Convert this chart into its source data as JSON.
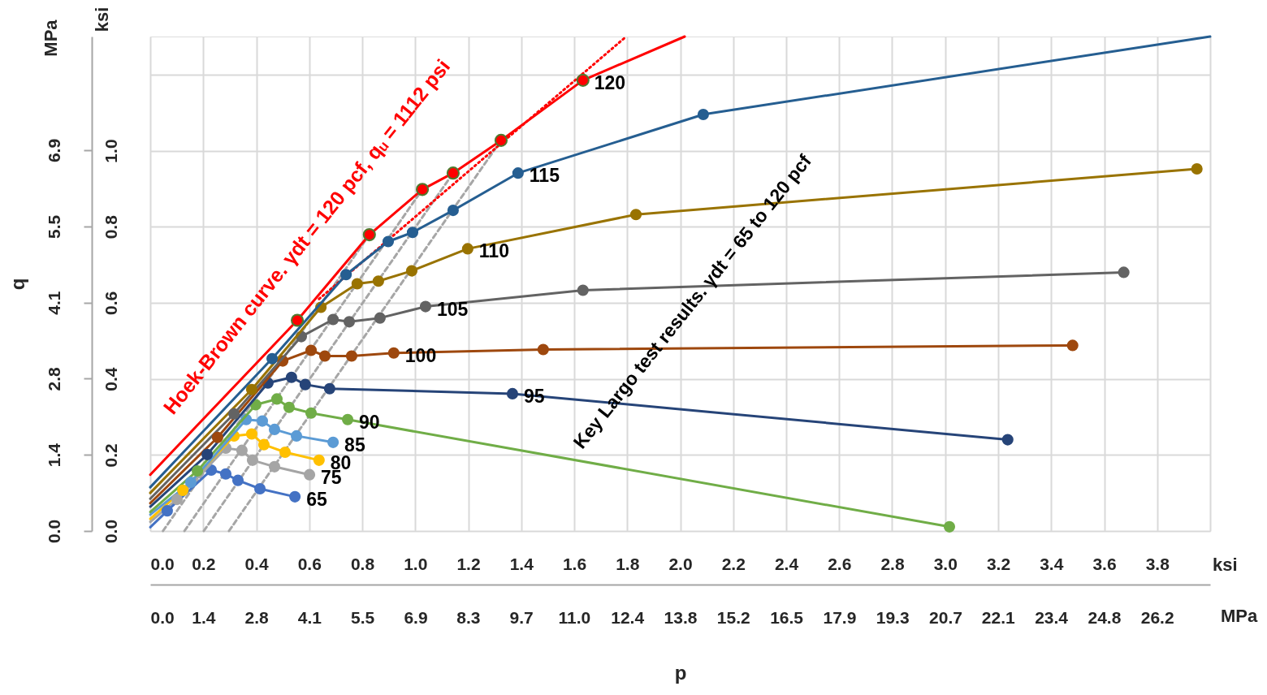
{
  "chart_data": {
    "type": "line",
    "xlabel": "p",
    "y2label": "q",
    "marker": "circle",
    "grid": true,
    "xlim": [
      0,
      4.0
    ],
    "ylim": [
      0,
      1.3
    ],
    "xticks": [
      {
        "value": 0,
        "label": "0.0"
      },
      {
        "value": 0.2,
        "label": "0.2"
      },
      {
        "value": 0.4,
        "label": "0.4"
      },
      {
        "value": 0.6,
        "label": "0.6"
      },
      {
        "value": 0.8,
        "label": "0.8"
      },
      {
        "value": 1.0,
        "label": "1.0"
      },
      {
        "value": 1.2,
        "label": "1.2"
      },
      {
        "value": 1.4,
        "label": "1.4"
      },
      {
        "value": 1.6,
        "label": "1.6"
      },
      {
        "value": 1.8,
        "label": "1.8"
      },
      {
        "value": 2.0,
        "label": "2.0"
      },
      {
        "value": 2.2,
        "label": "2.2"
      },
      {
        "value": 2.4,
        "label": "2.4"
      },
      {
        "value": 2.6,
        "label": "2.6"
      },
      {
        "value": 2.8,
        "label": "2.8"
      },
      {
        "value": 3.0,
        "label": "3.0"
      },
      {
        "value": 3.2,
        "label": "3.2"
      },
      {
        "value": 3.4,
        "label": "3.4"
      },
      {
        "value": 3.6,
        "label": "3.6"
      },
      {
        "value": 3.8,
        "label": "3.8"
      },
      {
        "value": 4.0,
        "label": null
      }
    ],
    "yticks": [
      {
        "value": 0,
        "label": "0.0"
      },
      {
        "value": 0.2,
        "label": "0.2"
      },
      {
        "value": 0.4,
        "label": "0.4"
      },
      {
        "value": 0.6,
        "label": "0.6"
      },
      {
        "value": 0.8,
        "label": "0.8"
      },
      {
        "value": 1.0,
        "label": "1.0"
      },
      {
        "value": 1.2,
        "label": null
      }
    ],
    "x2lim": [
      0,
      27.58
    ],
    "x2ticks": [
      {
        "value": 0,
        "label": "0.0"
      },
      {
        "value": 1.38,
        "label": "1.4"
      },
      {
        "value": 2.76,
        "label": "2.8"
      },
      {
        "value": 4.14,
        "label": "4.1"
      },
      {
        "value": 5.52,
        "label": "5.5"
      },
      {
        "value": 6.9,
        "label": "6.9"
      },
      {
        "value": 8.27,
        "label": "8.3"
      },
      {
        "value": 9.65,
        "label": "9.7"
      },
      {
        "value": 11.03,
        "label": "11.0"
      },
      {
        "value": 12.41,
        "label": "12.4"
      },
      {
        "value": 13.79,
        "label": "13.8"
      },
      {
        "value": 15.17,
        "label": "15.2"
      },
      {
        "value": 16.55,
        "label": "16.5"
      },
      {
        "value": 17.93,
        "label": "17.9"
      },
      {
        "value": 19.31,
        "label": "19.3"
      },
      {
        "value": 20.69,
        "label": "20.7"
      },
      {
        "value": 22.06,
        "label": "22.1"
      },
      {
        "value": 23.44,
        "label": "23.4"
      },
      {
        "value": 24.82,
        "label": "24.8"
      },
      {
        "value": 26.2,
        "label": "26.2"
      }
    ],
    "y2lim": [
      0,
      8.96
    ],
    "y2ticks": [
      {
        "value": 0,
        "label": "0.0"
      },
      {
        "value": 1.38,
        "label": "1.4"
      },
      {
        "value": 2.76,
        "label": "2.8"
      },
      {
        "value": 4.14,
        "label": "4.1"
      },
      {
        "value": 5.52,
        "label": "5.5"
      },
      {
        "value": 6.9,
        "label": "6.9"
      }
    ],
    "annotations": [
      "Hoek-Brown curve. γdt = 120 pcf, qᵤ = 1112 psi",
      "Key Largo test results. γdt = 65 to 120 pcf",
      "MPa",
      "ksi",
      "ksi",
      "MPa"
    ],
    "series": [
      {
        "color": "#a6a6a6",
        "line_style": "dashed",
        "marker": "none",
        "x": [
          0.048,
          0.827
        ],
        "values": [
          0,
          0.779
        ]
      },
      {
        "color": "#a6a6a6",
        "line_style": "dashed",
        "marker": "none",
        "x": [
          0.129,
          1.027
        ],
        "values": [
          0,
          0.898
        ]
      },
      {
        "color": "#a6a6a6",
        "line_style": "dashed",
        "marker": "none",
        "x": [
          0.202,
          1.143
        ],
        "values": [
          0,
          0.941
        ]
      },
      {
        "color": "#a6a6a6",
        "line_style": "dashed",
        "marker": "none",
        "x": [
          0.297,
          1.324
        ],
        "values": [
          0,
          1.027
        ]
      },
      {
        "color": "#4472c4",
        "marker": "none",
        "x": [
          0,
          0.051
        ],
        "values": [
          0.01,
          0.044
        ]
      },
      {
        "color": "#a5a5a5",
        "marker": "none",
        "x": [
          0,
          0.087
        ],
        "values": [
          0.024,
          0.075
        ]
      },
      {
        "color": "#ffc000",
        "marker": "none",
        "x": [
          0,
          0.109
        ],
        "values": [
          0.032,
          0.099
        ]
      },
      {
        "color": "#5b9bd5",
        "marker": "none",
        "x": [
          0,
          0.139
        ],
        "values": [
          0.043,
          0.12
        ]
      },
      {
        "color": "#70ad47",
        "marker": "none",
        "x": [
          0,
          0.164
        ],
        "values": [
          0.05,
          0.15
        ]
      },
      {
        "color": "#264478",
        "marker": "none",
        "x": [
          0,
          0.201
        ],
        "values": [
          0.064,
          0.192
        ]
      },
      {
        "color": "#9e480e",
        "marker": "none",
        "x": [
          0,
          0.241
        ],
        "values": [
          0.073,
          0.237
        ]
      },
      {
        "color": "#636363",
        "marker": "none",
        "x": [
          0,
          0.303
        ],
        "values": [
          0.085,
          0.299
        ]
      },
      {
        "color": "#997300",
        "marker": "none",
        "x": [
          0,
          0.37
        ],
        "values": [
          0.1,
          0.363
        ]
      },
      {
        "color": "#255e91",
        "marker": "none",
        "x": [
          0,
          0.447
        ],
        "values": [
          0.115,
          0.444
        ]
      },
      {
        "color": "#255e91",
        "marker": "none",
        "x": [
          2.105,
          4.0
        ],
        "values": [
          1.097,
          1.3
        ]
      },
      {
        "color": "#ff0000",
        "marker": "none",
        "x": [
          0,
          0.555,
          0.827,
          1.027,
          1.143,
          1.324,
          1.633,
          2.017
        ],
        "values": [
          0.148,
          0.554,
          0.779,
          0.898,
          0.941,
          1.027,
          1.185,
          1.3
        ]
      },
      {
        "color": "#ff0000",
        "line_style": "dotted",
        "marker": "none",
        "x": [
          0.637,
          1.793
        ],
        "values": [
          0.61,
          1.298
        ]
      },
      {
        "name": "65",
        "color": "#4472c4",
        "x": [
          0.064,
          0.23,
          0.285,
          0.331,
          0.414,
          0.546
        ],
        "values": [
          0.053,
          0.16,
          0.15,
          0.133,
          0.111,
          0.09
        ]
      },
      {
        "name": "75",
        "color": "#a5a5a5",
        "x": [
          0.101,
          0.285,
          0.346,
          0.386,
          0.469,
          0.601
        ],
        "values": [
          0.083,
          0.218,
          0.212,
          0.186,
          0.169,
          0.148
        ]
      },
      {
        "name": "80",
        "color": "#ffc000",
        "x": [
          0.123,
          0.316,
          0.383,
          0.429,
          0.509,
          0.637
        ],
        "values": [
          0.107,
          0.25,
          0.255,
          0.227,
          0.207,
          0.186
        ]
      },
      {
        "name": "85",
        "color": "#5b9bd5",
        "x": [
          0.153,
          0.362,
          0.423,
          0.469,
          0.552,
          0.69
        ],
        "values": [
          0.128,
          0.293,
          0.289,
          0.267,
          0.25,
          0.233
        ]
      },
      {
        "name": "90",
        "color": "#70ad47",
        "x": [
          0.178,
          0.398,
          0.478,
          0.524,
          0.607,
          0.745,
          3.016
        ],
        "values": [
          0.158,
          0.332,
          0.347,
          0.325,
          0.31,
          0.293,
          0.011
        ]
      },
      {
        "name": "95",
        "color": "#264478",
        "x": [
          0.215,
          0.444,
          0.533,
          0.585,
          0.677,
          1.367,
          3.236
        ],
        "values": [
          0.201,
          0.389,
          0.404,
          0.385,
          0.374,
          0.361,
          0.24
        ]
      },
      {
        "name": "100",
        "color": "#9e480e",
        "x": [
          0.254,
          0.5,
          0.607,
          0.659,
          0.76,
          0.919,
          1.483,
          3.481
        ],
        "values": [
          0.246,
          0.447,
          0.475,
          0.46,
          0.46,
          0.468,
          0.477,
          0.488
        ]
      },
      {
        "name": "105",
        "color": "#636363",
        "x": [
          0.316,
          0.57,
          0.69,
          0.751,
          0.867,
          1.039,
          1.633,
          3.674
        ],
        "values": [
          0.308,
          0.511,
          0.556,
          0.55,
          0.56,
          0.59,
          0.633,
          0.68
        ]
      },
      {
        "name": "110",
        "color": "#997300",
        "x": [
          0.383,
          0.644,
          0.781,
          0.861,
          0.987,
          1.198,
          1.833,
          3.95
        ],
        "values": [
          0.372,
          0.588,
          0.65,
          0.657,
          0.684,
          0.742,
          0.832,
          0.952
        ]
      },
      {
        "name": "115",
        "color": "#255e91",
        "x": [
          0.46,
          0.739,
          0.898,
          0.99,
          1.143,
          1.388,
          2.087
        ],
        "values": [
          0.453,
          0.674,
          0.761,
          0.785,
          0.843,
          0.941,
          1.095
        ]
      },
      {
        "name": "120",
        "type": "scatter",
        "color": "#ff0000",
        "x": [
          0.555,
          0.827,
          1.027,
          1.143,
          1.324,
          1.633
        ],
        "values": [
          0.554,
          0.779,
          0.898,
          0.941,
          1.027,
          1.185
        ]
      }
    ]
  }
}
